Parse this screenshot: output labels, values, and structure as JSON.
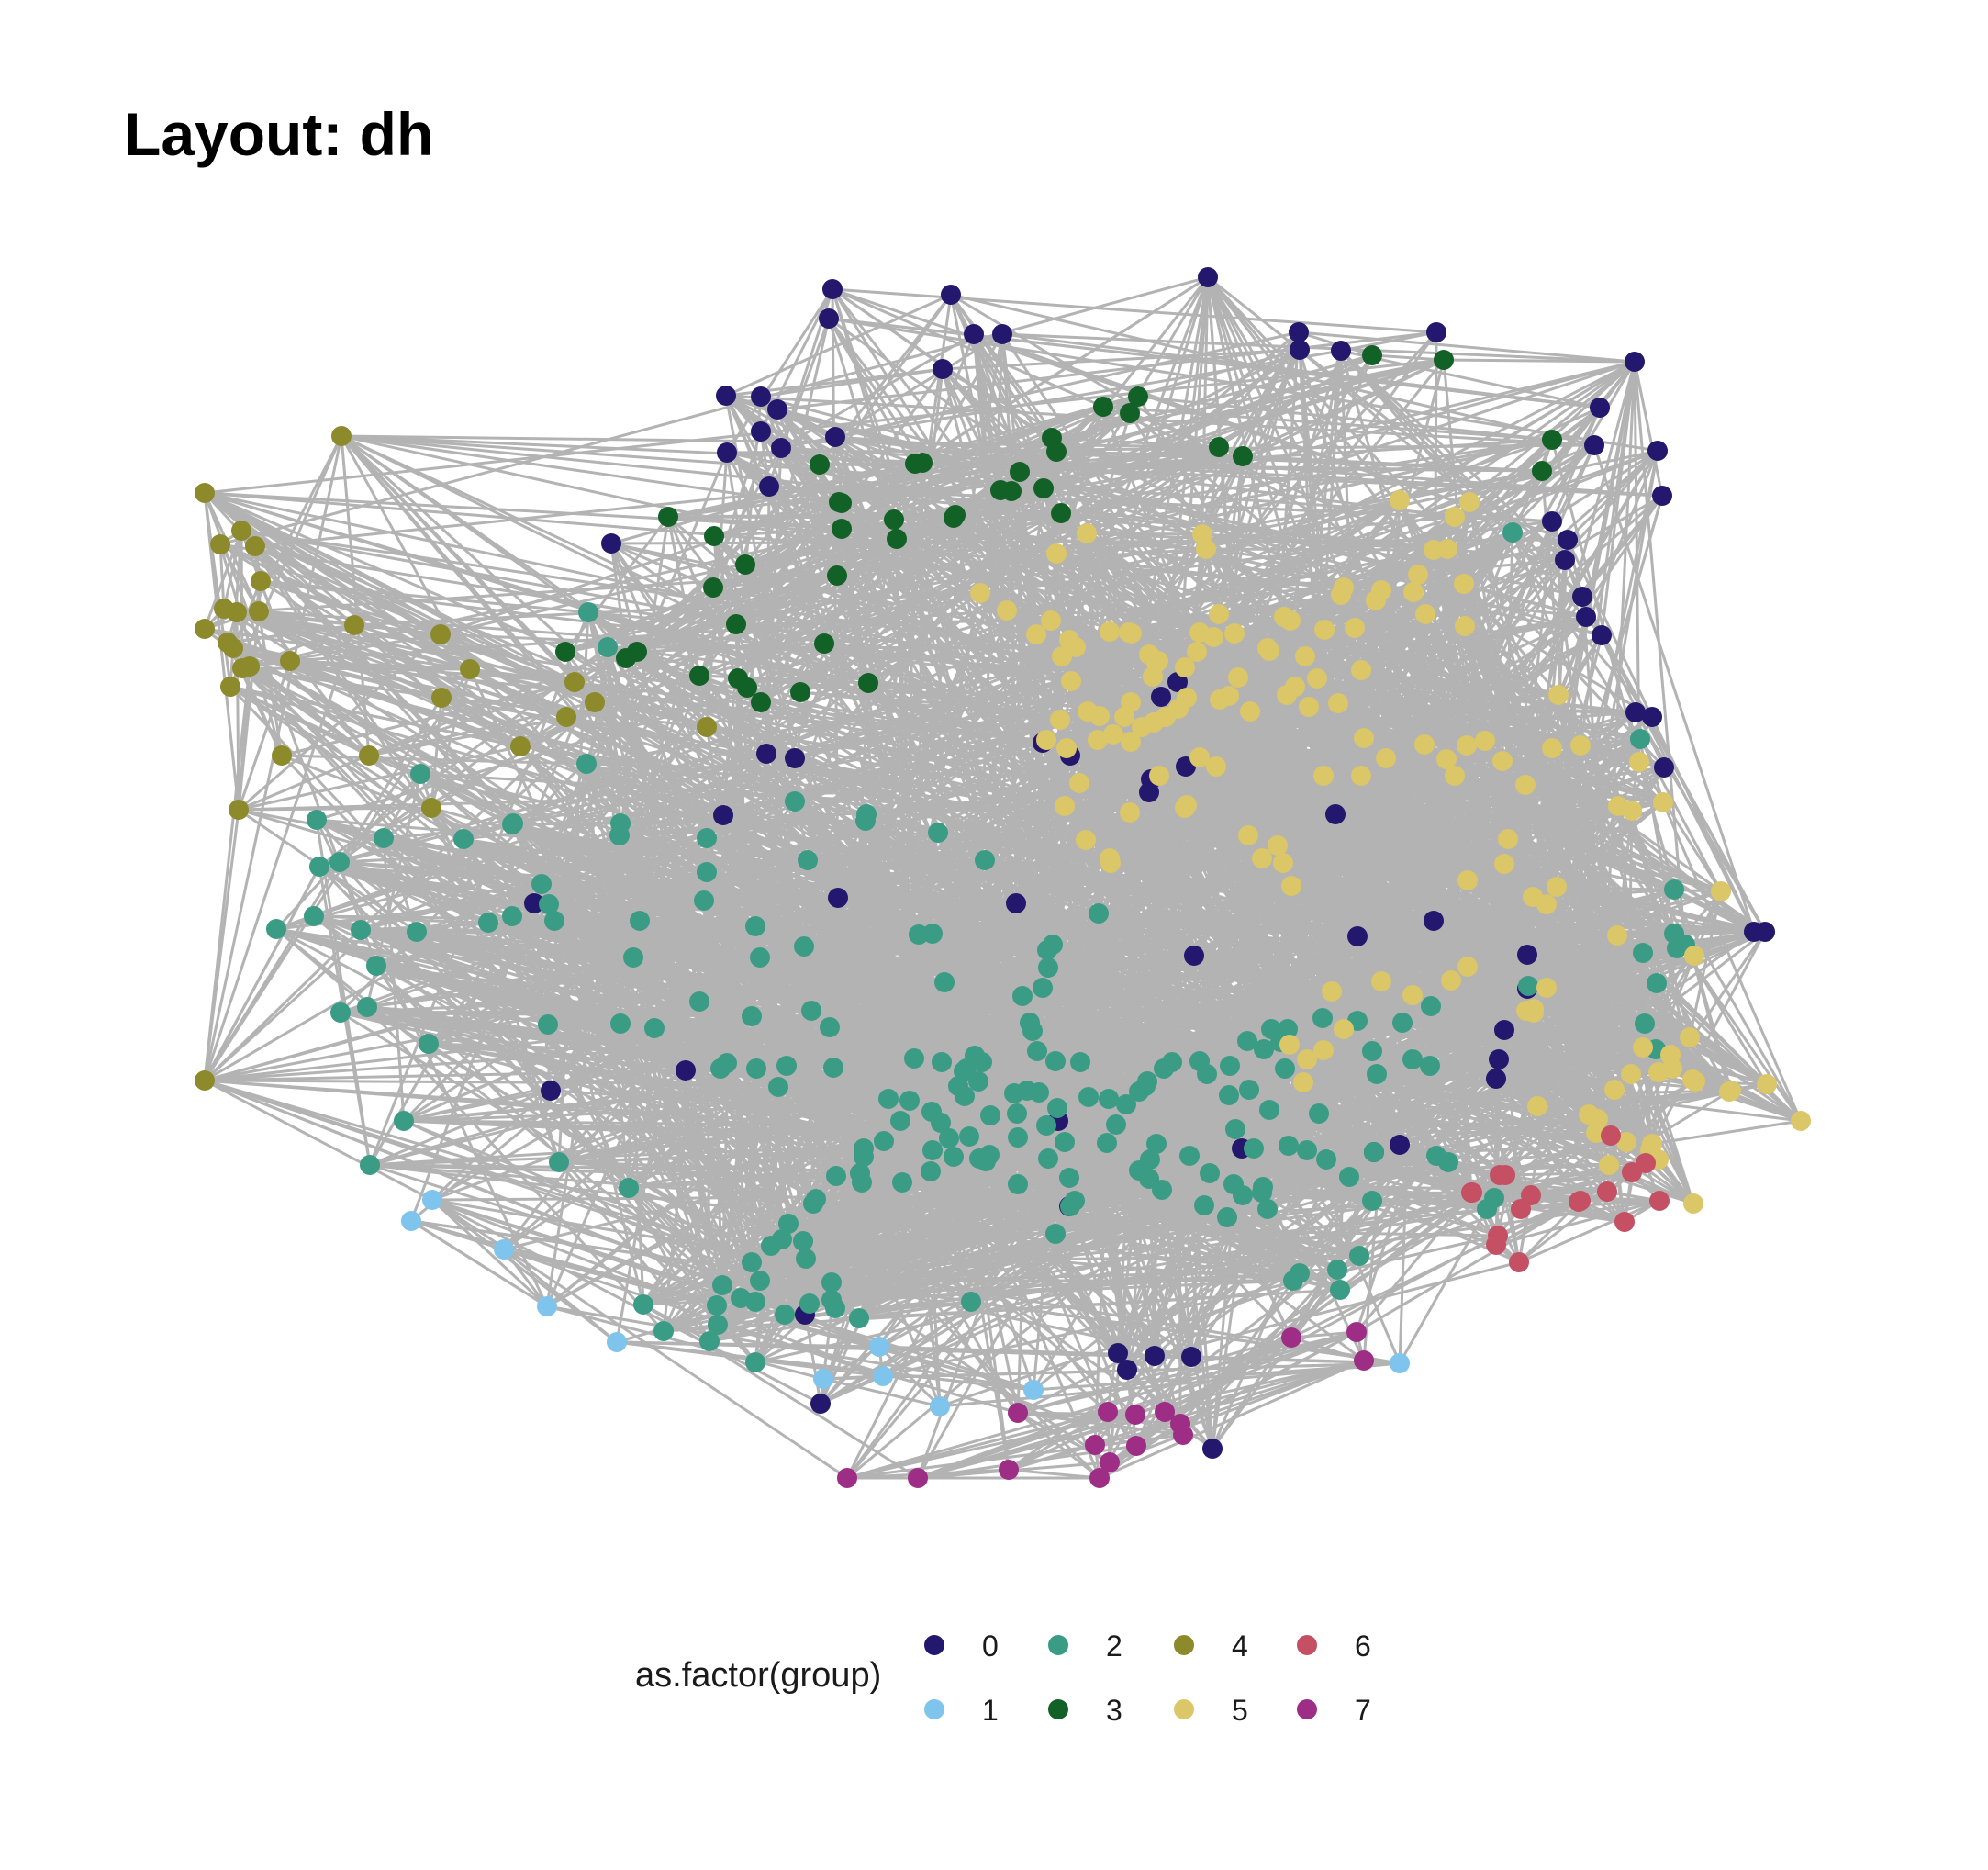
{
  "title": "Layout: dh",
  "legend": {
    "title": "as.factor(group)",
    "items": [
      {
        "label": "0",
        "color": "#24186E"
      },
      {
        "label": "1",
        "color": "#7EC4EC"
      },
      {
        "label": "2",
        "color": "#3B9C86"
      },
      {
        "label": "3",
        "color": "#126227"
      },
      {
        "label": "4",
        "color": "#8C8A2A"
      },
      {
        "label": "5",
        "color": "#DBC668"
      },
      {
        "label": "6",
        "color": "#C54F63"
      },
      {
        "label": "7",
        "color": "#9E2D85"
      }
    ]
  },
  "edge_color": "#b3b3b3",
  "diagram_type": "network graph"
}
